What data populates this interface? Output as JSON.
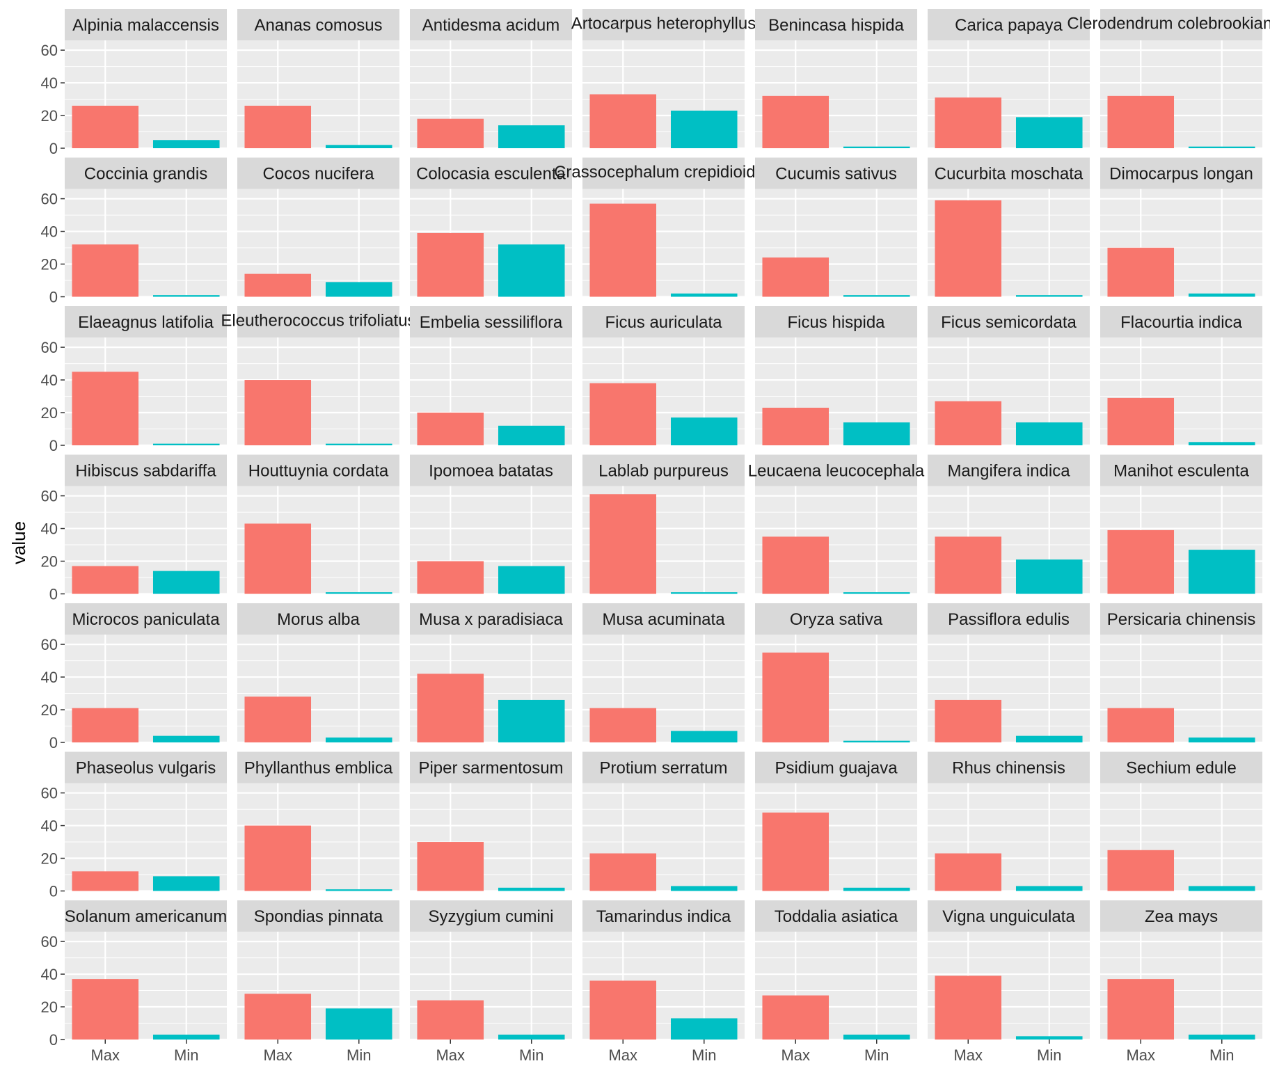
{
  "chart_data": {
    "type": "bar",
    "layout": "facet-grid-7x7",
    "xlabel": "",
    "ylabel": "value",
    "ylim": [
      0,
      66
    ],
    "y_ticks": [
      0,
      20,
      40,
      60
    ],
    "categories": [
      "Max",
      "Min"
    ],
    "colors": {
      "Max": "#F8766D",
      "Min": "#00BFC4",
      "panel": "#EBEBEB",
      "strip": "#D9D9D9",
      "grid": "#FFFFFF"
    },
    "grid": true,
    "facets": [
      {
        "name": "Alpinia malaccensis",
        "values": [
          26,
          5
        ]
      },
      {
        "name": "Ananas comosus",
        "values": [
          26,
          2
        ]
      },
      {
        "name": "Antidesma acidum",
        "values": [
          18,
          14
        ]
      },
      {
        "name": "Artocarpus heterophyllus",
        "values": [
          33,
          23
        ]
      },
      {
        "name": "Benincasa hispida",
        "values": [
          32,
          1
        ]
      },
      {
        "name": "Carica papaya",
        "values": [
          31,
          19
        ]
      },
      {
        "name": "Clerodendrum colebrookianum",
        "values": [
          32,
          1
        ]
      },
      {
        "name": "Coccinia grandis",
        "values": [
          32,
          1
        ]
      },
      {
        "name": "Cocos nucifera",
        "values": [
          14,
          9
        ]
      },
      {
        "name": "Colocasia esculenta",
        "values": [
          39,
          32
        ]
      },
      {
        "name": "Crassocephalum crepidioides",
        "values": [
          57,
          2
        ]
      },
      {
        "name": "Cucumis sativus",
        "values": [
          24,
          1
        ]
      },
      {
        "name": "Cucurbita moschata",
        "values": [
          59,
          1
        ]
      },
      {
        "name": "Dimocarpus longan",
        "values": [
          30,
          2
        ]
      },
      {
        "name": "Elaeagnus latifolia",
        "values": [
          45,
          1
        ]
      },
      {
        "name": "Eleutherococcus trifoliatus",
        "values": [
          40,
          1
        ]
      },
      {
        "name": "Embelia sessiliflora",
        "values": [
          20,
          12
        ]
      },
      {
        "name": "Ficus auriculata",
        "values": [
          38,
          17
        ]
      },
      {
        "name": "Ficus hispida",
        "values": [
          23,
          14
        ]
      },
      {
        "name": "Ficus semicordata",
        "values": [
          27,
          14
        ]
      },
      {
        "name": "Flacourtia indica",
        "values": [
          29,
          2
        ]
      },
      {
        "name": "Hibiscus sabdariffa",
        "values": [
          17,
          14
        ]
      },
      {
        "name": "Houttuynia cordata",
        "values": [
          43,
          1
        ]
      },
      {
        "name": "Ipomoea batatas",
        "values": [
          20,
          17
        ]
      },
      {
        "name": "Lablab purpureus",
        "values": [
          61,
          1
        ]
      },
      {
        "name": "Leucaena leucocephala",
        "values": [
          35,
          1
        ]
      },
      {
        "name": "Mangifera indica",
        "values": [
          35,
          21
        ]
      },
      {
        "name": "Manihot esculenta",
        "values": [
          39,
          27
        ]
      },
      {
        "name": "Microcos paniculata",
        "values": [
          21,
          4
        ]
      },
      {
        "name": "Morus alba",
        "values": [
          28,
          3
        ]
      },
      {
        "name": "Musa x paradisiaca",
        "values": [
          42,
          26
        ]
      },
      {
        "name": "Musa acuminata",
        "values": [
          21,
          7
        ]
      },
      {
        "name": "Oryza sativa",
        "values": [
          55,
          1
        ]
      },
      {
        "name": "Passiflora edulis",
        "values": [
          26,
          4
        ]
      },
      {
        "name": "Persicaria chinensis",
        "values": [
          21,
          3
        ]
      },
      {
        "name": "Phaseolus vulgaris",
        "values": [
          12,
          9
        ]
      },
      {
        "name": "Phyllanthus emblica",
        "values": [
          40,
          1
        ]
      },
      {
        "name": "Piper sarmentosum",
        "values": [
          30,
          2
        ]
      },
      {
        "name": "Protium serratum",
        "values": [
          23,
          3
        ]
      },
      {
        "name": "Psidium guajava",
        "values": [
          48,
          2
        ]
      },
      {
        "name": "Rhus chinensis",
        "values": [
          23,
          3
        ]
      },
      {
        "name": "Sechium edule",
        "values": [
          25,
          3
        ]
      },
      {
        "name": "Solanum americanum",
        "values": [
          37,
          3
        ]
      },
      {
        "name": "Spondias pinnata",
        "values": [
          28,
          19
        ]
      },
      {
        "name": "Syzygium cumini",
        "values": [
          24,
          3
        ]
      },
      {
        "name": "Tamarindus indica",
        "values": [
          36,
          13
        ]
      },
      {
        "name": "Toddalia asiatica",
        "values": [
          27,
          3
        ]
      },
      {
        "name": "Vigna unguiculata",
        "values": [
          39,
          2
        ]
      },
      {
        "name": "Zea mays",
        "values": [
          37,
          3
        ]
      }
    ]
  }
}
